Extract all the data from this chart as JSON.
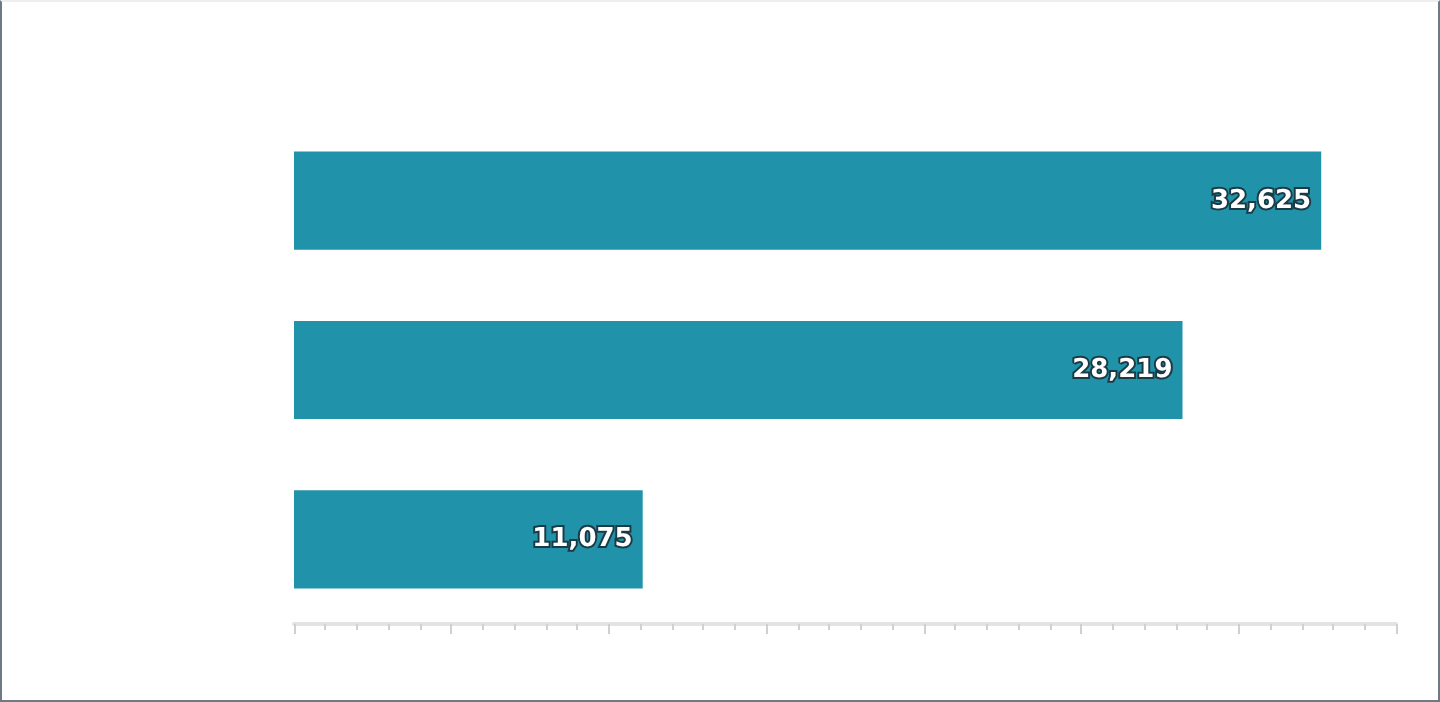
{
  "chart_data": {
    "type": "bar",
    "orientation": "horizontal",
    "categories": [
      null,
      null,
      null
    ],
    "values": [
      32625,
      28219,
      11075
    ],
    "color": "#2093ab",
    "value_labels": [
      "32,625",
      "28,219",
      "11,075"
    ],
    "xlim": [
      0,
      35000
    ],
    "xticks": [
      {
        "value": 0,
        "label": null
      },
      {
        "value": 5000,
        "label": null
      },
      {
        "value": 10000,
        "label": null
      },
      {
        "value": 15000,
        "label": null
      },
      {
        "value": 20000,
        "label": null
      },
      {
        "value": 25000,
        "label": null
      },
      {
        "value": 30000,
        "label": null
      },
      {
        "value": 35000,
        "label": null
      }
    ],
    "grid": false
  }
}
